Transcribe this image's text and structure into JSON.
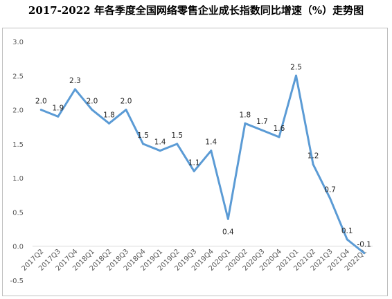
{
  "chart_data": {
    "type": "line",
    "title": "2017-2022 年各季度全国网络零售企业成长指数同比增速（%）走势图",
    "xlabel": "",
    "ylabel": "",
    "ylim": [
      -0.5,
      3.0
    ],
    "yticks": [
      "3.0",
      "2.5",
      "2.0",
      "1.5",
      "1.0",
      "0.5",
      "0.0",
      "-0.5"
    ],
    "grid": false,
    "legend": "none",
    "categories": [
      "2017Q2",
      "2017Q3",
      "2017Q4",
      "2018Q1",
      "2018Q2",
      "2018Q3",
      "2018Q4",
      "2019Q1",
      "2019Q2",
      "2019Q3",
      "2019Q4",
      "2020Q1",
      "2020Q2",
      "2020Q3",
      "2020Q4",
      "2021Q1",
      "2021Q2",
      "2021Q3",
      "2021Q4",
      "2022Q1"
    ],
    "values": [
      2.0,
      1.9,
      2.3,
      2.0,
      1.8,
      2.0,
      1.5,
      1.4,
      1.5,
      1.1,
      1.4,
      0.4,
      1.8,
      1.7,
      1.6,
      2.5,
      1.2,
      0.7,
      0.1,
      -0.1
    ],
    "data_labels": [
      "2.0",
      "1.9",
      "2.3",
      "2.0",
      "1.8",
      "2.0",
      "1.5",
      "1.4",
      "1.5",
      "1.1",
      "1.4",
      "0.4",
      "1.8",
      "1.7",
      "1.6",
      "2.5",
      "1.2",
      "0.7",
      "0.1",
      "-0.1"
    ],
    "line_color": "#5b9bd5"
  }
}
